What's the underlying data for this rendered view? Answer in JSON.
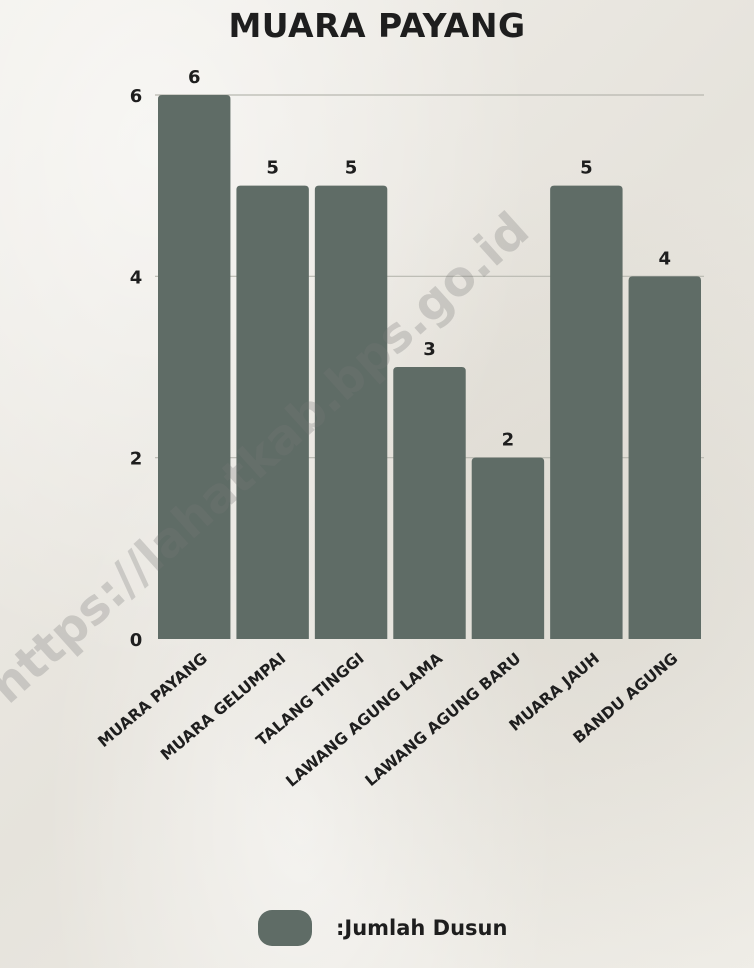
{
  "chart_data": {
    "type": "bar",
    "title": "MUARA PAYANG",
    "categories": [
      "MUARA PAYANG",
      "MUARA GELUMPAI",
      "TALANG TINGGI",
      "LAWANG AGUNG LAMA",
      "LAWANG AGUNG BARU",
      "MUARA JAUH",
      "BANDU AGUNG"
    ],
    "series": [
      {
        "name": ":Jumlah Dusun",
        "values": [
          6,
          5,
          5,
          3,
          2,
          5,
          4
        ]
      }
    ],
    "ylim": [
      0,
      6
    ],
    "yticks": [
      0,
      2,
      4,
      6
    ],
    "grid": true,
    "legend_position": "bottom",
    "bar_color": "#5f6c66",
    "watermark": "https://lahatkab.bps.go.id"
  }
}
